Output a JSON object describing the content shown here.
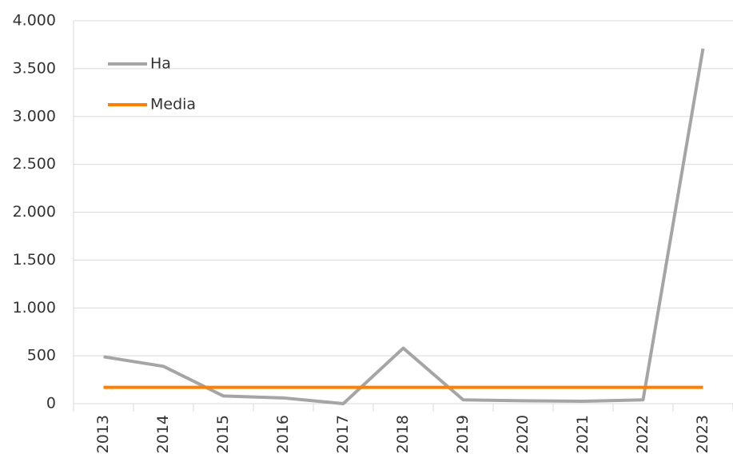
{
  "chart_data": {
    "type": "line",
    "categories": [
      "2013",
      "2014",
      "2015",
      "2016",
      "2017",
      "2018",
      "2019",
      "2020",
      "2021",
      "2022",
      "2023"
    ],
    "series": [
      {
        "name": "Ha",
        "color": "#a5a5a5",
        "values": [
          490,
          390,
          80,
          60,
          0,
          580,
          40,
          30,
          25,
          40,
          3710
        ]
      },
      {
        "name": "Media",
        "color": "#ff7f00",
        "values": [
          170,
          170,
          170,
          170,
          170,
          170,
          170,
          170,
          170,
          170,
          170
        ]
      }
    ],
    "ylim": [
      0,
      4000
    ],
    "yticks": [
      0,
      500,
      {
        "value": 1000,
        "label": "1.000"
      },
      {
        "value": 1500,
        "label": "1.500"
      },
      {
        "value": 2000,
        "label": "2.000"
      },
      {
        "value": 2500,
        "label": "2.500"
      },
      {
        "value": 3000,
        "label": "3.000"
      },
      {
        "value": 3500,
        "label": "3.500"
      },
      {
        "value": 4000,
        "label": "4.000"
      }
    ],
    "grid": true,
    "legend": "upper-left"
  }
}
